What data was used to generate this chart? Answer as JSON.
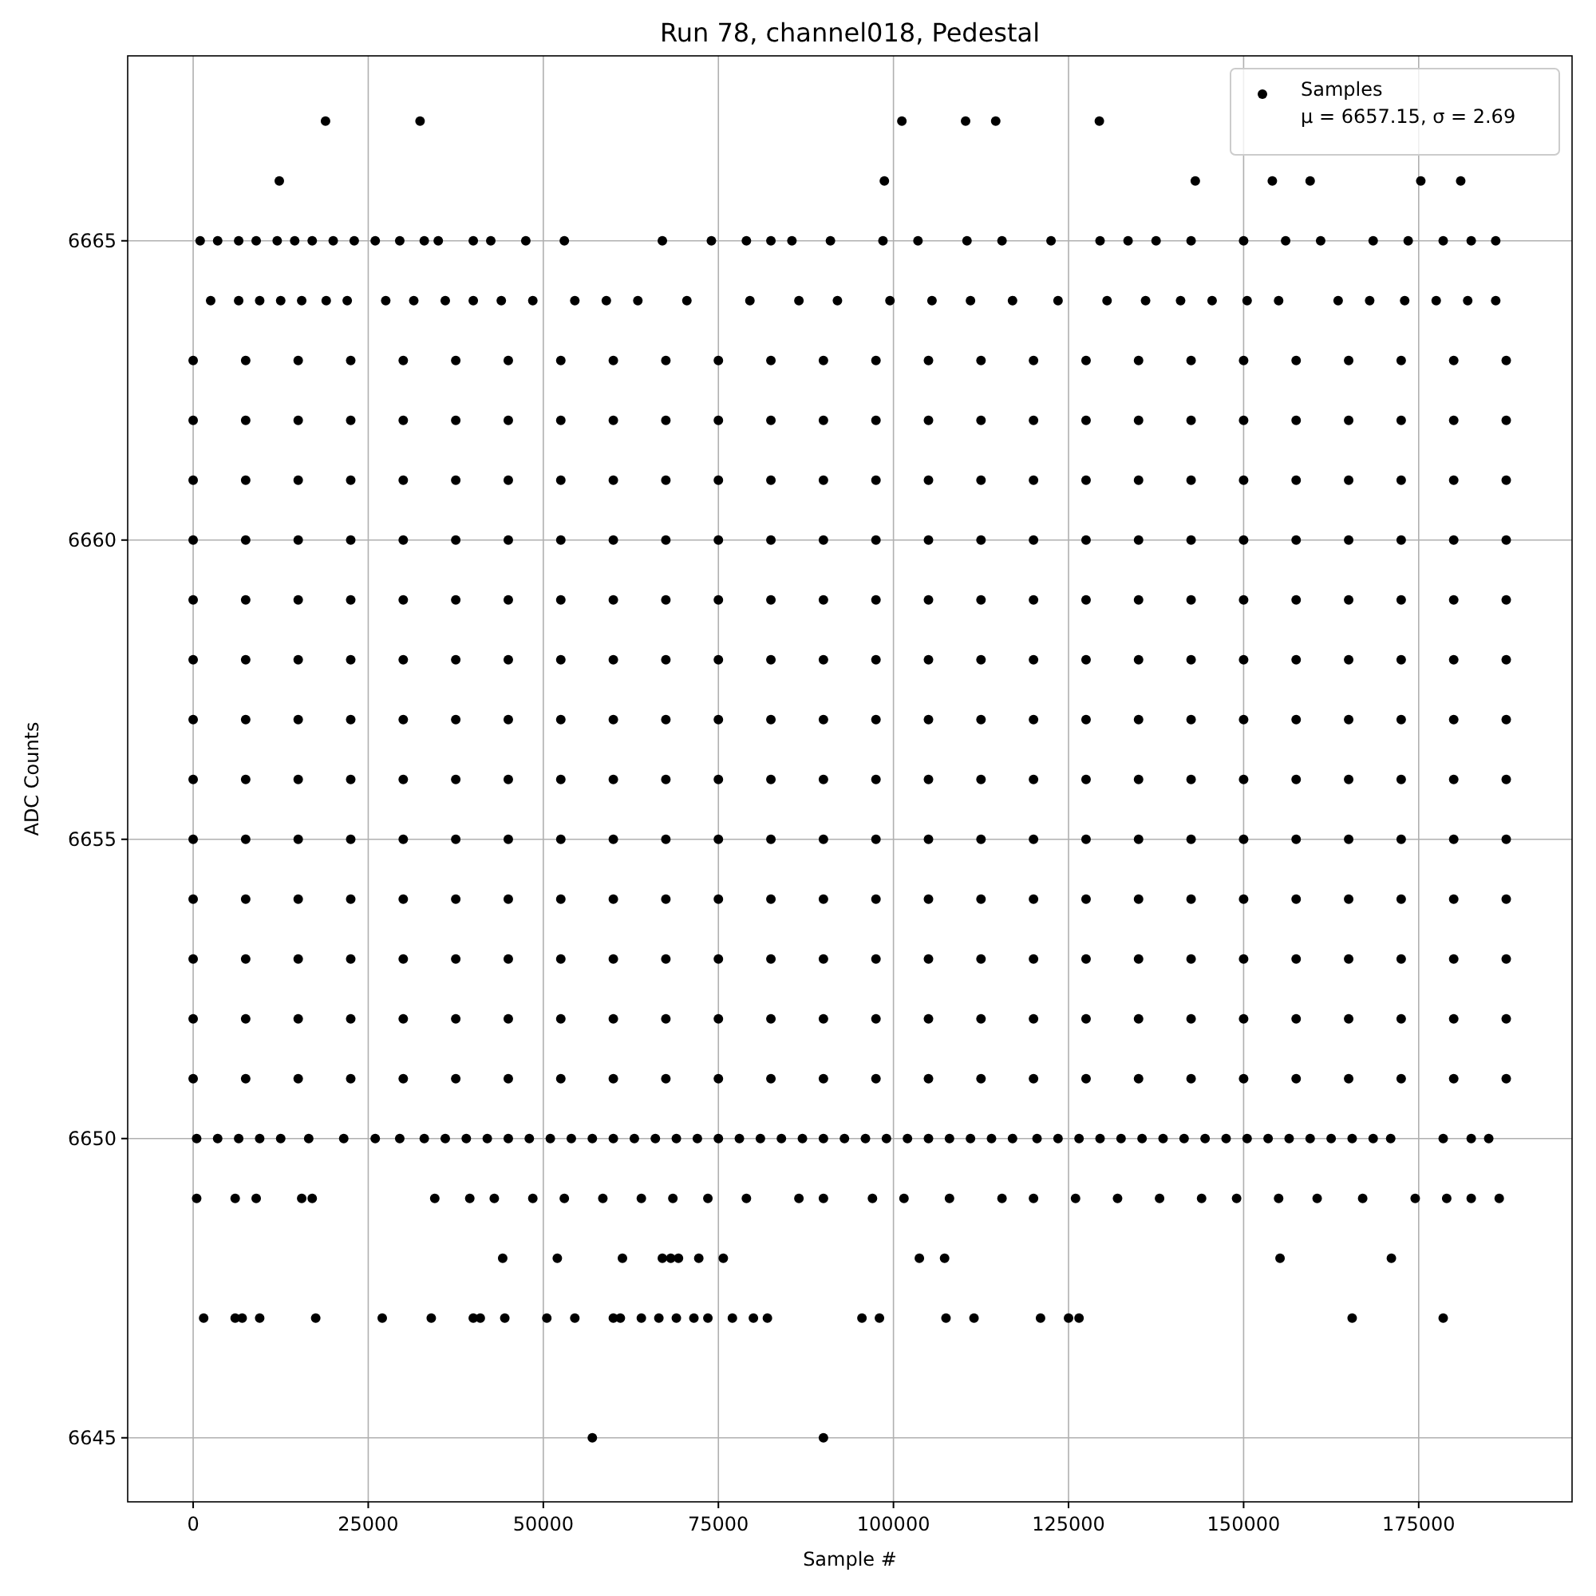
{
  "chart_data": {
    "type": "scatter",
    "title": "Run 78, channel018, Pedestal",
    "xlabel": "Sample #",
    "ylabel": "ADC Counts",
    "annotations": [
      "μ = 6657.15, σ = 2.69"
    ],
    "x": [
      0,
      7500,
      15000,
      22500,
      30000,
      37500,
      45000,
      52500,
      60000,
      67500,
      75000,
      82500,
      90000,
      97500,
      105000,
      112500,
      120000,
      127500,
      135000,
      142500,
      150000,
      157500,
      165000,
      172500,
      180000,
      187500
    ],
    "series": [
      {
        "name": "Samples",
        "color": "#000000",
        "values": [
          6660,
          6660,
          6660,
          6660,
          6660,
          6660,
          6660,
          6660,
          6660,
          6660,
          6660,
          6660,
          6660,
          6660,
          6660,
          6660,
          6660,
          6660,
          6660,
          6660,
          6660,
          6660,
          6660,
          6660,
          6660,
          6660
        ]
      },
      {
        "color": "#000000",
        "values": [
          6651,
          6651,
          6651,
          6651,
          6651,
          6651,
          6651,
          6651,
          6651,
          6651,
          6651,
          6651,
          6651,
          6651,
          6651,
          6651,
          6651,
          6651,
          6651,
          6651,
          6651,
          6651,
          6651,
          6651,
          6651,
          6651
        ]
      },
      {
        "color": "#000000",
        "values": [
          6652,
          6652,
          6652,
          6652,
          6652,
          6652,
          6652,
          6652,
          6652,
          6652,
          6652,
          6652,
          6652,
          6652,
          6652,
          6652,
          6652,
          6652,
          6652,
          6652,
          6652,
          6652,
          6652,
          6652,
          6652,
          6652
        ]
      },
      {
        "color": "#000000",
        "values": [
          6653,
          6653,
          6653,
          6653,
          6653,
          6653,
          6653,
          6653,
          6653,
          6653,
          6653,
          6653,
          6653,
          6653,
          6653,
          6653,
          6653,
          6653,
          6653,
          6653,
          6653,
          6653,
          6653,
          6653,
          6653,
          6653
        ]
      },
      {
        "color": "#000000",
        "values": [
          6654,
          6654,
          6654,
          6654,
          6654,
          6654,
          6654,
          6654,
          6654,
          6654,
          6654,
          6654,
          6654,
          6654,
          6654,
          6654,
          6654,
          6654,
          6654,
          6654,
          6654,
          6654,
          6654,
          6654,
          6654,
          6654
        ]
      },
      {
        "color": "#000000",
        "values": [
          6655,
          6655,
          6655,
          6655,
          6655,
          6655,
          6655,
          6655,
          6655,
          6655,
          6655,
          6655,
          6655,
          6655,
          6655,
          6655,
          6655,
          6655,
          6655,
          6655,
          6655,
          6655,
          6655,
          6655,
          6655,
          6655
        ]
      },
      {
        "color": "#000000",
        "values": [
          6656,
          6656,
          6656,
          6656,
          6656,
          6656,
          6656,
          6656,
          6656,
          6656,
          6656,
          6656,
          6656,
          6656,
          6656,
          6656,
          6656,
          6656,
          6656,
          6656,
          6656,
          6656,
          6656,
          6656,
          6656,
          6656
        ]
      },
      {
        "color": "#000000",
        "values": [
          6657,
          6657,
          6657,
          6657,
          6657,
          6657,
          6657,
          6657,
          6657,
          6657,
          6657,
          6657,
          6657,
          6657,
          6657,
          6657,
          6657,
          6657,
          6657,
          6657,
          6657,
          6657,
          6657,
          6657,
          6657,
          6657
        ]
      },
      {
        "color": "#000000",
        "values": [
          6658,
          6658,
          6658,
          6658,
          6658,
          6658,
          6658,
          6658,
          6658,
          6658,
          6658,
          6658,
          6658,
          6658,
          6658,
          6658,
          6658,
          6658,
          6658,
          6658,
          6658,
          6658,
          6658,
          6658,
          6658,
          6658
        ]
      },
      {
        "color": "#000000",
        "values": [
          6659,
          6659,
          6659,
          6659,
          6659,
          6659,
          6659,
          6659,
          6659,
          6659,
          6659,
          6659,
          6659,
          6659,
          6659,
          6659,
          6659,
          6659,
          6659,
          6659,
          6659,
          6659,
          6659,
          6659,
          6659,
          6659
        ]
      },
      {
        "color": "#000000",
        "values": [
          6661,
          6661,
          6661,
          6661,
          6661,
          6661,
          6661,
          6661,
          6661,
          6661,
          6661,
          6661,
          6661,
          6661,
          6661,
          6661,
          6661,
          6661,
          6661,
          6661,
          6661,
          6661,
          6661,
          6661,
          6661,
          6661
        ]
      },
      {
        "color": "#000000",
        "values": [
          6662,
          6662,
          6662,
          6662,
          6662,
          6662,
          6662,
          6662,
          6662,
          6662,
          6662,
          6662,
          6662,
          6662,
          6662,
          6662,
          6662,
          6662,
          6662,
          6662,
          6662,
          6662,
          6662,
          6662,
          6662,
          6662
        ]
      },
      {
        "color": "#000000",
        "values": [
          6663,
          6663,
          6663,
          6663,
          6663,
          6663,
          6663,
          6663,
          6663,
          6663,
          6663,
          6663,
          6663,
          6663,
          6663,
          6663,
          6663,
          6663,
          6663,
          6663,
          6663,
          6663,
          6663,
          6663,
          6663,
          6663
        ]
      },
      {
        "color": "#000000",
        "x": [
          18900,
          32400,
          101200,
          110300,
          114600,
          129400
        ],
        "values": [
          6667,
          6667,
          6667,
          6667,
          6667,
          6667
        ]
      },
      {
        "color": "#000000",
        "x": [
          12300,
          98700,
          143100,
          154100,
          159500,
          175300,
          181000
        ],
        "values": [
          6666,
          6666,
          6666,
          6666,
          6666,
          6666,
          6666
        ]
      },
      {
        "color": "#000000",
        "x": [
          1000,
          3500,
          6500,
          9000,
          12000,
          14500,
          17000,
          20000,
          23000,
          26000,
          29500,
          33000,
          35000,
          40000,
          42500,
          47500,
          53000,
          67000,
          74000,
          79000,
          82500,
          85500,
          91000,
          98500,
          103500,
          110500,
          115500,
          122500,
          129500,
          133500,
          137500,
          142500,
          150000,
          156000,
          161000,
          168500,
          173500,
          178500,
          182500,
          186000
        ],
        "values": [
          6665,
          6665,
          6665,
          6665,
          6665,
          6665,
          6665,
          6665,
          6665,
          6665,
          6665,
          6665,
          6665,
          6665,
          6665,
          6665,
          6665,
          6665,
          6665,
          6665,
          6665,
          6665,
          6665,
          6665,
          6665,
          6665,
          6665,
          6665,
          6665,
          6665,
          6665,
          6665,
          6665,
          6665,
          6665,
          6665,
          6665,
          6665,
          6665,
          6665
        ]
      },
      {
        "color": "#000000",
        "x": [
          2500,
          6500,
          9500,
          12500,
          15500,
          19000,
          22000,
          27500,
          31500,
          36000,
          40000,
          44000,
          48500,
          54500,
          59000,
          63500,
          70500,
          79500,
          86500,
          92000,
          99500,
          105500,
          111000,
          117000,
          123500,
          130500,
          136000,
          141000,
          145500,
          150500,
          155000,
          163500,
          168000,
          173000,
          177500,
          182000,
          186000
        ],
        "values": [
          6664,
          6664,
          6664,
          6664,
          6664,
          6664,
          6664,
          6664,
          6664,
          6664,
          6664,
          6664,
          6664,
          6664,
          6664,
          6664,
          6664,
          6664,
          6664,
          6664,
          6664,
          6664,
          6664,
          6664,
          6664,
          6664,
          6664,
          6664,
          6664,
          6664,
          6664,
          6664,
          6664,
          6664,
          6664,
          6664,
          6664
        ]
      },
      {
        "color": "#000000",
        "x": [
          500,
          3500,
          6500,
          9500,
          12500,
          16500,
          21500,
          26000,
          29500,
          33000,
          36000,
          39000,
          42000,
          45000,
          48000,
          51000,
          54000,
          57000,
          60000,
          63000,
          66000,
          69000,
          72000,
          75000,
          78000,
          81000,
          84000,
          87000,
          90000,
          93000,
          96000,
          99000,
          102000,
          105000,
          108000,
          111000,
          114000,
          117000,
          120500,
          123500,
          126500,
          129500,
          132500,
          135500,
          138500,
          141500,
          144500,
          147500,
          150500,
          153500,
          156500,
          159500,
          162500,
          165500,
          168500,
          171000,
          178500,
          182500,
          185000
        ],
        "values": [
          6650,
          6650,
          6650,
          6650,
          6650,
          6650,
          6650,
          6650,
          6650,
          6650,
          6650,
          6650,
          6650,
          6650,
          6650,
          6650,
          6650,
          6650,
          6650,
          6650,
          6650,
          6650,
          6650,
          6650,
          6650,
          6650,
          6650,
          6650,
          6650,
          6650,
          6650,
          6650,
          6650,
          6650,
          6650,
          6650,
          6650,
          6650,
          6650,
          6650,
          6650,
          6650,
          6650,
          6650,
          6650,
          6650,
          6650,
          6650,
          6650,
          6650,
          6650,
          6650,
          6650,
          6650,
          6650,
          6650,
          6650,
          6650,
          6650
        ]
      },
      {
        "color": "#000000",
        "x": [
          500,
          6000,
          9000,
          15500,
          17000,
          34500,
          39500,
          43000,
          48500,
          53000,
          58500,
          64000,
          68500,
          73500,
          79000,
          86500,
          90000,
          97000,
          101500,
          108000,
          115500,
          120000,
          126000,
          132000,
          138000,
          144000,
          149000,
          155000,
          160500,
          167000,
          174500,
          179000,
          182500,
          186500
        ],
        "values": [
          6649,
          6649,
          6649,
          6649,
          6649,
          6649,
          6649,
          6649,
          6649,
          6649,
          6649,
          6649,
          6649,
          6649,
          6649,
          6649,
          6649,
          6649,
          6649,
          6649,
          6649,
          6649,
          6649,
          6649,
          6649,
          6649,
          6649,
          6649,
          6649,
          6649,
          6649,
          6649,
          6649,
          6649
        ]
      },
      {
        "color": "#000000",
        "x": [
          44200,
          52000,
          61300,
          67000,
          68200,
          69300,
          72200,
          75700,
          103700,
          107300,
          155200,
          171100
        ],
        "values": [
          6648,
          6648,
          6648,
          6648,
          6648,
          6648,
          6648,
          6648,
          6648,
          6648,
          6648,
          6648
        ]
      },
      {
        "color": "#000000",
        "x": [
          1500,
          6000,
          7000,
          9500,
          17500,
          27000,
          34000,
          40000,
          41000,
          44500,
          50500,
          54500,
          60000,
          61000,
          64000,
          66500,
          69000,
          71500,
          73500,
          77000,
          80000,
          82000,
          95500,
          98000,
          107500,
          111500,
          121000,
          125000,
          126500,
          165500,
          178500
        ],
        "values": [
          6647,
          6647,
          6647,
          6647,
          6647,
          6647,
          6647,
          6647,
          6647,
          6647,
          6647,
          6647,
          6647,
          6647,
          6647,
          6647,
          6647,
          6647,
          6647,
          6647,
          6647,
          6647,
          6647,
          6647,
          6647,
          6647,
          6647,
          6647,
          6647,
          6647,
          6647
        ]
      },
      {
        "color": "#000000",
        "x": [
          57000,
          90000
        ],
        "values": [
          6645,
          6645
        ]
      }
    ],
    "xlim": [
      -9350,
      196900
    ],
    "ylim": [
      6643.93,
      6668.09
    ],
    "xticks": [
      0,
      25000,
      50000,
      75000,
      100000,
      125000,
      150000,
      175000
    ],
    "yticks": [
      6645,
      6650,
      6655,
      6660,
      6665
    ],
    "grid": true,
    "legend": "top right",
    "marker": "circle"
  }
}
